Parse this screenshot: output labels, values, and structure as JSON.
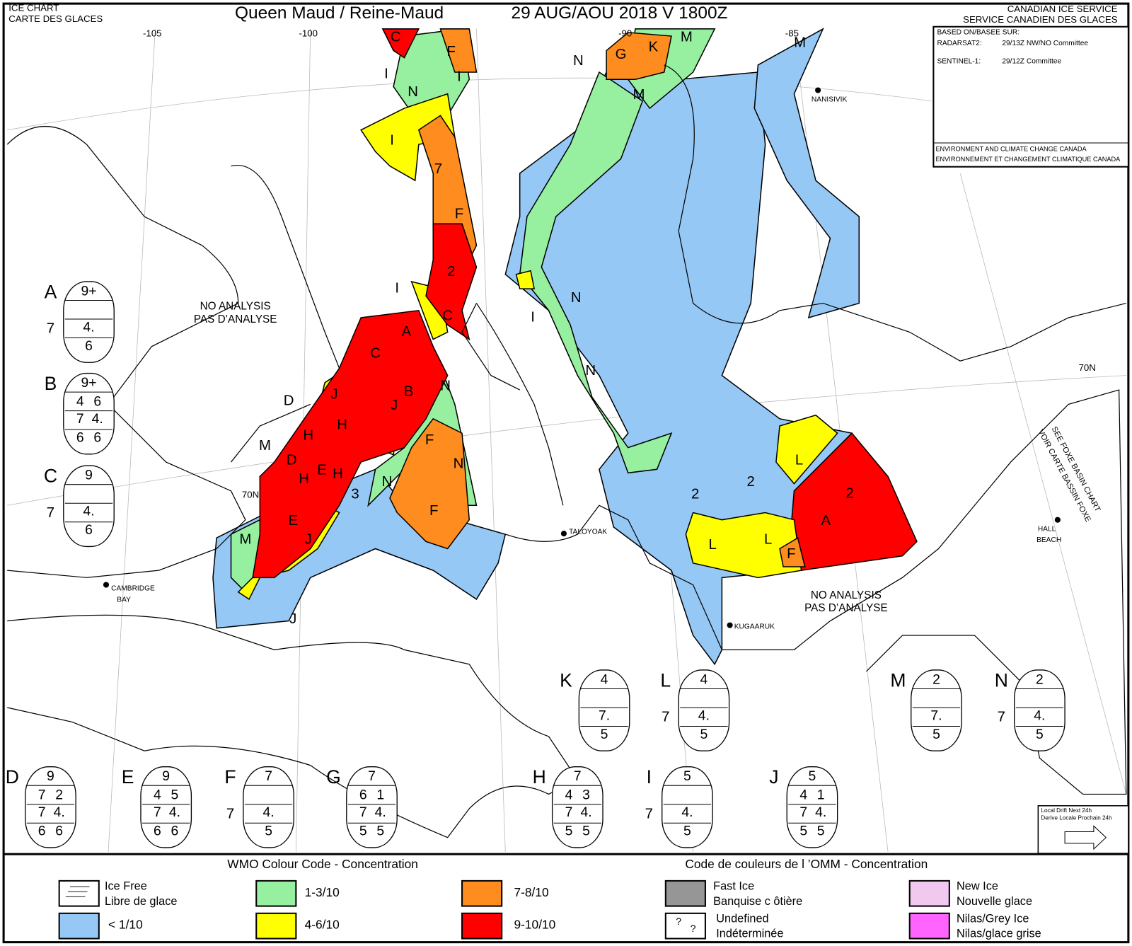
{
  "header": {
    "left": [
      "ICE CHART",
      "CARTE DES GLACES"
    ],
    "title": "Queen Maud / Reine-Maud",
    "date": "29 AUG/AOU 2018  V 1800Z",
    "right": [
      "CANADIAN ICE SERVICE",
      "SERVICE CANADIEN DES GLACES"
    ]
  },
  "info": {
    "based_on": "BASED ON/BASEE SUR:",
    "sources": [
      {
        "name": "RADARSAT2:",
        "detail": "29/13Z NW/NO Committee"
      },
      {
        "name": "SENTINEL-1:",
        "detail": "29/12Z Committee"
      }
    ],
    "agency": [
      "ENVIRONMENT AND CLIMATE CHANGE CANADA",
      "ENVIRONNEMENT ET CHANGEMENT CLIMATIQUE CANADA"
    ]
  },
  "map": {
    "region_labels": [
      "C",
      "F",
      "I",
      "I",
      "N",
      "I",
      "7",
      "F",
      "2",
      "I",
      "C",
      "A",
      "C",
      "B",
      "N",
      "J",
      "J",
      "D",
      "H",
      "H",
      "F",
      "N",
      "M",
      "D",
      "H",
      "E",
      "H",
      "3",
      "N",
      "F",
      "E",
      "J",
      "M",
      "J",
      "G",
      "K",
      "M",
      "N",
      "M",
      "M",
      "N",
      "I",
      "N",
      "2",
      "2",
      "L",
      "2",
      "A",
      "L",
      "L",
      "F"
    ],
    "graticule_labels": [
      "-105",
      "-100",
      "-90",
      "-85",
      "70N",
      "70N"
    ],
    "places": [
      "NANISIVIK",
      "TALOYOAK",
      "CAMBRIDGE",
      "BAY",
      "KUGAARUK",
      "HALL",
      "BEACH"
    ],
    "no_analysis": [
      [
        "NO ANALYSIS",
        "PAS D’ANALYSE"
      ],
      [
        "NO ANALYSIS",
        "PAS D’ANALYSE"
      ]
    ],
    "foxe_note": [
      "SEE FOXE BASIN CHART",
      "VOIR CARTE BASSIN FOXE"
    ]
  },
  "eggs": [
    {
      "letter": "A",
      "total": "9+",
      "partial": [],
      "stage": [
        "4."
      ],
      "form": [
        "6"
      ],
      "side": "7"
    },
    {
      "letter": "B",
      "total": "9+",
      "partial": [
        "4",
        "6"
      ],
      "stage": [
        "7",
        "4."
      ],
      "form": [
        "6",
        "6"
      ]
    },
    {
      "letter": "C",
      "total": "9",
      "partial": [],
      "stage": [
        "4."
      ],
      "form": [
        "6"
      ],
      "side": "7"
    },
    {
      "letter": "K",
      "total": "4",
      "partial": [],
      "stage": [
        "7."
      ],
      "form": [
        "5"
      ]
    },
    {
      "letter": "L",
      "total": "4",
      "partial": [],
      "stage": [
        "4."
      ],
      "form": [
        "5"
      ],
      "side": "7"
    },
    {
      "letter": "M",
      "total": "2",
      "partial": [],
      "stage": [
        "7."
      ],
      "form": [
        "5"
      ]
    },
    {
      "letter": "N",
      "total": "2",
      "partial": [],
      "stage": [
        "4."
      ],
      "form": [
        "5"
      ],
      "side": "7"
    },
    {
      "letter": "D",
      "total": "9",
      "partial": [
        "7",
        "2"
      ],
      "stage": [
        "7",
        "4."
      ],
      "form": [
        "6",
        "6"
      ]
    },
    {
      "letter": "E",
      "total": "9",
      "partial": [
        "4",
        "5"
      ],
      "stage": [
        "7",
        "4."
      ],
      "form": [
        "6",
        "6"
      ]
    },
    {
      "letter": "F",
      "total": "7",
      "partial": [],
      "stage": [
        "4."
      ],
      "form": [
        "5"
      ],
      "side": "7"
    },
    {
      "letter": "G",
      "total": "7",
      "partial": [
        "6",
        "1"
      ],
      "stage": [
        "7",
        "4."
      ],
      "form": [
        "5",
        "5"
      ]
    },
    {
      "letter": "H",
      "total": "7",
      "partial": [
        "4",
        "3"
      ],
      "stage": [
        "7",
        "4."
      ],
      "form": [
        "5",
        "5"
      ]
    },
    {
      "letter": "I",
      "total": "5",
      "partial": [],
      "stage": [
        "4."
      ],
      "form": [
        "5"
      ],
      "side": "7"
    },
    {
      "letter": "J",
      "total": "5",
      "partial": [
        "4",
        "1"
      ],
      "stage": [
        "7",
        "4."
      ],
      "form": [
        "5",
        "5"
      ]
    }
  ],
  "drift": [
    "Local Drift Next 24h",
    "Derive Locale Prochain 24h"
  ],
  "legend": {
    "title_en": "WMO Colour Code - Concentration",
    "title_fr": "Code de couleurs de l ’OMM - Concentration",
    "items": [
      {
        "label": [
          "Ice Free",
          "Libre de glace"
        ],
        "color": "#ffffff"
      },
      {
        "label": [
          "< 1/10"
        ],
        "color": "#96c8f5"
      },
      {
        "label": [
          "1-3/10"
        ],
        "color": "#96f0a0"
      },
      {
        "label": [
          "4-6/10"
        ],
        "color": "#ffff00"
      },
      {
        "label": [
          "7-8/10"
        ],
        "color": "#ff8c1e"
      },
      {
        "label": [
          "9-10/10"
        ],
        "color": "#ff0000"
      },
      {
        "label": [
          "Fast Ice",
          "Banquise c ôtière"
        ],
        "color": "#969696"
      },
      {
        "label": [
          "Undefined",
          "Indéterminée"
        ],
        "color": "#ffffff",
        "symbol": [
          "?",
          "?"
        ]
      },
      {
        "label": [
          "New Ice",
          "Nouvelle glace"
        ],
        "color": "#f0c8f0"
      },
      {
        "label": [
          "Nilas/Grey Ice",
          "Nilas/glace grise"
        ],
        "color": "#ff64ff"
      }
    ]
  }
}
